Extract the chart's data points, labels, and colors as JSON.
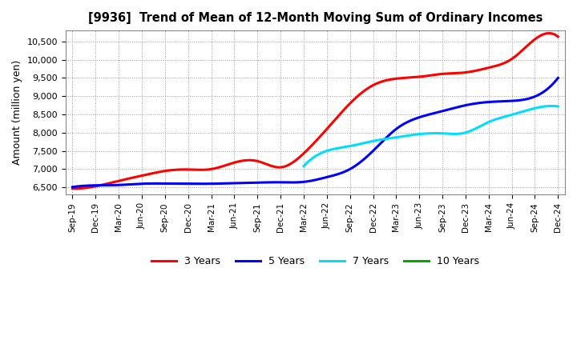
{
  "title": "[9936]  Trend of Mean of 12-Month Moving Sum of Ordinary Incomes",
  "ylabel": "Amount (million yen)",
  "background_color": "#ffffff",
  "plot_bg_color": "#ffffff",
  "grid_color": "#999999",
  "x_labels": [
    "Sep-19",
    "Dec-19",
    "Mar-20",
    "Jun-20",
    "Sep-20",
    "Dec-20",
    "Mar-21",
    "Jun-21",
    "Sep-21",
    "Dec-21",
    "Mar-22",
    "Jun-22",
    "Sep-22",
    "Dec-22",
    "Mar-23",
    "Jun-23",
    "Sep-23",
    "Dec-23",
    "Mar-24",
    "Jun-24",
    "Sep-24",
    "Dec-24"
  ],
  "ylim": [
    6300,
    10800
  ],
  "yticks": [
    6500,
    7000,
    7500,
    8000,
    8500,
    9000,
    9500,
    10000,
    10500
  ],
  "series_3y": {
    "color": "#ff0000",
    "x": [
      0,
      1,
      2,
      3,
      4,
      5,
      6,
      7,
      8,
      9,
      10,
      11,
      12,
      13,
      14,
      15,
      16,
      17,
      18,
      19,
      20,
      21
    ],
    "y": [
      6470,
      6530,
      6680,
      6820,
      6950,
      6990,
      7000,
      7180,
      7220,
      7050,
      7430,
      8100,
      8800,
      9300,
      9480,
      9530,
      9610,
      9650,
      9780,
      10020,
      10560,
      10630
    ]
  },
  "series_5y": {
    "color": "#0000ff",
    "x": [
      0,
      1,
      2,
      3,
      4,
      5,
      6,
      7,
      8,
      9,
      10,
      11,
      12,
      13,
      14,
      15,
      16,
      17,
      18,
      19,
      20,
      21
    ],
    "y": [
      6510,
      6555,
      6565,
      6600,
      6605,
      6600,
      6600,
      6615,
      6630,
      6640,
      6650,
      6780,
      7000,
      7500,
      8100,
      8420,
      8590,
      8750,
      8840,
      8870,
      8990,
      9500
    ]
  },
  "series_7y": {
    "color": "#00ddff",
    "x": [
      10,
      11,
      12,
      13,
      14,
      15,
      16,
      17,
      18,
      19,
      20,
      21
    ],
    "y": [
      7080,
      7500,
      7630,
      7770,
      7870,
      7960,
      7980,
      8000,
      8290,
      8490,
      8670,
      8720
    ]
  },
  "series_10y": {
    "color": "#00aa00",
    "x": [],
    "y": []
  },
  "legend_colors": [
    "#ff0000",
    "#0000ff",
    "#00ddff",
    "#00aa00"
  ],
  "legend_labels": [
    "3 Years",
    "5 Years",
    "7 Years",
    "10 Years"
  ]
}
